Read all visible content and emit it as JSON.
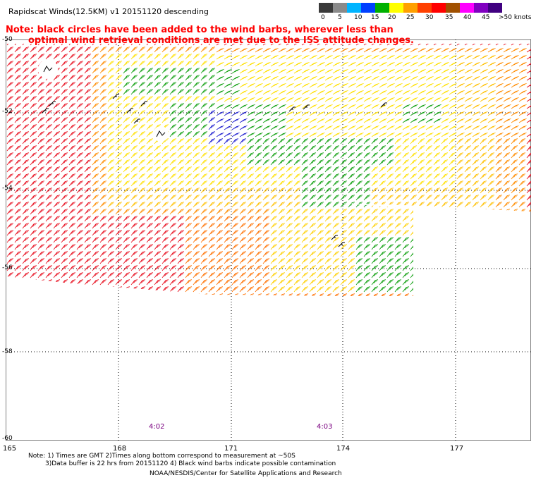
{
  "title": "Rapidscat Winds(12.5KM) v1 20151120 descending",
  "note": {
    "line1": "Note: black circles have been added to the wind barbs, wherever less than",
    "line2": "optimal wind retrieval conditions are met due to the ISS attitude changes."
  },
  "legend": {
    "labels": [
      "0",
      "5",
      "10",
      "15",
      "20",
      "25",
      "30",
      "35",
      "40",
      "45",
      ">50 knots"
    ],
    "colors": [
      "#3a3a3a",
      "#8a8a8a",
      "#00b4ff",
      "#0040ff",
      "#00b000",
      "#ffff00",
      "#ffa000",
      "#ff4000",
      "#ff0000",
      "#a05000",
      "#ff00ff",
      "#8000c0",
      "#400080"
    ]
  },
  "axes": {
    "lon_labels": [
      "165",
      "168",
      "171",
      "174",
      "177"
    ],
    "lat_labels": [
      "-50",
      "-52",
      "-54",
      "-56",
      "-58",
      "-60"
    ]
  },
  "times": [
    "4:02",
    "4:03"
  ],
  "footer": {
    "line1": "Note: 1) Times are GMT 2)Times along bottom correspond to measurement at ~50S",
    "line2": "3)Data buffer is 22 hrs from 20151120 4) Black wind barbs indicate possible contamination",
    "line3": "NOAA/NESDIS/Center for Satellite Applications and Research"
  }
}
